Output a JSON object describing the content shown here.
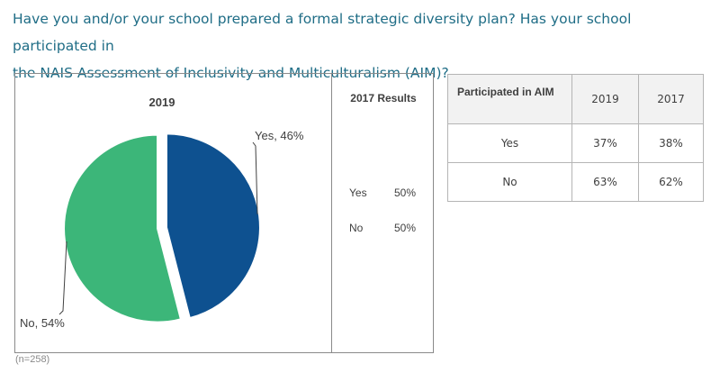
{
  "heading": {
    "line1": "Have you and/or your school prepared a formal strategic diversity plan? Has your school participated in",
    "line2": "the NAIS Assessment of Inclusivity and Multiculturalism (AIM)?"
  },
  "chart_data": [
    {
      "type": "pie",
      "title": "2019",
      "categories": [
        "Yes",
        "No"
      ],
      "values": [
        46,
        54
      ],
      "labels": [
        "Yes, 46%",
        "No, 54%"
      ],
      "colors": [
        "#0e5190",
        "#3cb679"
      ],
      "legend": "none"
    },
    {
      "type": "table",
      "title": "2017 Results",
      "rows": [
        {
          "label": "Yes",
          "value": "50%"
        },
        {
          "label": "No",
          "value": "50%"
        }
      ]
    },
    {
      "type": "table",
      "columns": [
        "Participated in AIM",
        "2019",
        "2017"
      ],
      "rows": [
        [
          "Yes",
          "37%",
          "38%"
        ],
        [
          "No",
          "63%",
          "62%"
        ]
      ]
    }
  ],
  "footnote": "(n=258)"
}
